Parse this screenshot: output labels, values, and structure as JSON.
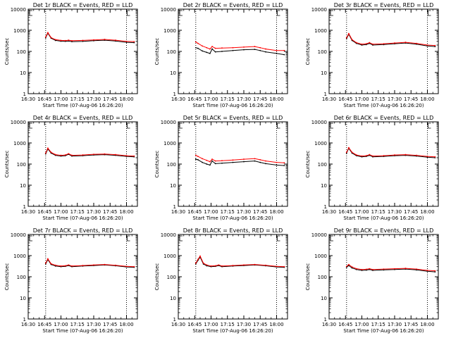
{
  "colors": {
    "events": "#000000",
    "lld": "#ff0000",
    "axis": "#000000",
    "background": "#ffffff"
  },
  "chart_data": [
    {
      "type": "line",
      "title": "Det 1r BLACK = Events, RED = LLD",
      "xlabel": "Start Time (07-Aug-06 16:26:20)",
      "ylabel": "Counts/sec",
      "xticks": [
        "16:30",
        "16:45",
        "17:00",
        "17:15",
        "17:30",
        "17:45",
        "18:00"
      ],
      "yticks": [
        "1",
        "10",
        "100",
        "1000",
        "10000"
      ],
      "ylog": true,
      "ylim": [
        1,
        10000
      ],
      "xlim_minutes": [
        990,
        1090
      ],
      "vlines_minutes": [
        1006,
        1080
      ],
      "series": [
        {
          "name": "Events",
          "color": "#000000",
          "x": [
            1006,
            1008,
            1011,
            1015,
            1020,
            1024,
            1027,
            1030,
            1040,
            1050,
            1060,
            1070,
            1080,
            1087
          ],
          "y": [
            440,
            730,
            420,
            330,
            305,
            300,
            310,
            290,
            300,
            320,
            340,
            310,
            270,
            260
          ]
        },
        {
          "name": "LLD",
          "color": "#ff0000",
          "x": [
            1006,
            1008,
            1011,
            1015,
            1020,
            1024,
            1027,
            1030,
            1040,
            1050,
            1060,
            1070,
            1080,
            1087
          ],
          "y": [
            480,
            780,
            450,
            360,
            330,
            325,
            340,
            320,
            330,
            350,
            370,
            340,
            300,
            290
          ]
        }
      ]
    },
    {
      "type": "line",
      "title": "Det 2r BLACK = Events, RED = LLD",
      "xlabel": "Start Time (07-Aug-06 16:26:20)",
      "ylabel": "Counts/sec",
      "xticks": [
        "16:30",
        "16:45",
        "17:00",
        "17:15",
        "17:30",
        "17:45",
        "18:00"
      ],
      "yticks": [
        "1",
        "10",
        "100",
        "1000",
        "10000"
      ],
      "ylog": true,
      "ylim": [
        1,
        10000
      ],
      "xlim_minutes": [
        990,
        1090
      ],
      "vlines_minutes": [
        1006,
        1080
      ],
      "series": [
        {
          "name": "Events",
          "color": "#000000",
          "x": [
            1006,
            1008,
            1012,
            1016,
            1019,
            1021,
            1024,
            1030,
            1040,
            1050,
            1060,
            1065,
            1070,
            1080,
            1087
          ],
          "y": [
            150,
            140,
            105,
            90,
            80,
            130,
            95,
            100,
            110,
            120,
            125,
            110,
            95,
            80,
            70
          ]
        },
        {
          "name": "LLD",
          "color": "#ff0000",
          "x": [
            1006,
            1008,
            1012,
            1016,
            1019,
            1021,
            1024,
            1030,
            1040,
            1050,
            1060,
            1065,
            1070,
            1080,
            1087
          ],
          "y": [
            280,
            240,
            180,
            150,
            130,
            170,
            140,
            145,
            150,
            160,
            170,
            150,
            130,
            110,
            110
          ]
        }
      ]
    },
    {
      "type": "line",
      "title": "Det 3r BLACK = Events, RED = LLD",
      "xlabel": "Start Time (07-Aug-06 16:26:20)",
      "ylabel": "Counts/sec",
      "xticks": [
        "16:30",
        "16:45",
        "17:00",
        "17:15",
        "17:30",
        "17:45",
        "18:00"
      ],
      "yticks": [
        "1",
        "10",
        "100",
        "1000",
        "10000"
      ],
      "ylog": true,
      "ylim": [
        1,
        10000
      ],
      "xlim_minutes": [
        990,
        1090
      ],
      "vlines_minutes": [
        1006,
        1080
      ],
      "series": [
        {
          "name": "Events",
          "color": "#000000",
          "x": [
            1006,
            1008,
            1011,
            1015,
            1020,
            1024,
            1027,
            1030,
            1040,
            1050,
            1060,
            1070,
            1080,
            1087
          ],
          "y": [
            400,
            650,
            330,
            240,
            200,
            210,
            240,
            200,
            210,
            230,
            250,
            220,
            180,
            170
          ]
        },
        {
          "name": "LLD",
          "color": "#ff0000",
          "x": [
            1006,
            1008,
            1011,
            1015,
            1020,
            1024,
            1027,
            1030,
            1040,
            1050,
            1060,
            1070,
            1080,
            1087
          ],
          "y": [
            440,
            700,
            360,
            260,
            220,
            230,
            260,
            220,
            230,
            250,
            270,
            240,
            200,
            190
          ]
        }
      ]
    },
    {
      "type": "line",
      "title": "Det 4r BLACK = Events, RED = LLD",
      "xlabel": "Start Time (07-Aug-06 16:26:20)",
      "ylabel": "Counts/sec",
      "xticks": [
        "16:30",
        "16:45",
        "17:00",
        "17:15",
        "17:30",
        "17:45",
        "18:00"
      ],
      "yticks": [
        "1",
        "10",
        "100",
        "1000",
        "10000"
      ],
      "ylog": true,
      "ylim": [
        1,
        10000
      ],
      "xlim_minutes": [
        990,
        1090
      ],
      "vlines_minutes": [
        1006,
        1080
      ],
      "series": [
        {
          "name": "Events",
          "color": "#000000",
          "x": [
            1006,
            1008,
            1011,
            1015,
            1020,
            1024,
            1027,
            1030,
            1040,
            1050,
            1060,
            1070,
            1080,
            1087
          ],
          "y": [
            300,
            520,
            330,
            260,
            240,
            250,
            290,
            240,
            250,
            270,
            280,
            260,
            230,
            220
          ]
        },
        {
          "name": "LLD",
          "color": "#ff0000",
          "x": [
            1006,
            1008,
            1011,
            1015,
            1020,
            1024,
            1027,
            1030,
            1040,
            1050,
            1060,
            1070,
            1080,
            1087
          ],
          "y": [
            330,
            570,
            360,
            280,
            260,
            270,
            310,
            260,
            270,
            290,
            300,
            280,
            250,
            240
          ]
        }
      ]
    },
    {
      "type": "line",
      "title": "Det 5r BLACK = Events, RED = LLD",
      "xlabel": "Start Time (07-Aug-06 16:26:20)",
      "ylabel": "Counts/sec",
      "xticks": [
        "16:30",
        "16:45",
        "17:00",
        "17:15",
        "17:30",
        "17:45",
        "18:00"
      ],
      "yticks": [
        "1",
        "10",
        "100",
        "1000",
        "10000"
      ],
      "ylog": true,
      "ylim": [
        1,
        10000
      ],
      "xlim_minutes": [
        990,
        1090
      ],
      "vlines_minutes": [
        1006,
        1080
      ],
      "series": [
        {
          "name": "Events",
          "color": "#000000",
          "x": [
            1006,
            1008,
            1012,
            1016,
            1019,
            1021,
            1024,
            1030,
            1040,
            1050,
            1060,
            1065,
            1070,
            1080,
            1087
          ],
          "y": [
            170,
            160,
            120,
            100,
            90,
            140,
            105,
            110,
            120,
            130,
            140,
            120,
            105,
            90,
            85
          ]
        },
        {
          "name": "LLD",
          "color": "#ff0000",
          "x": [
            1006,
            1008,
            1012,
            1016,
            1019,
            1021,
            1024,
            1030,
            1040,
            1050,
            1060,
            1065,
            1070,
            1080,
            1087
          ],
          "y": [
            260,
            230,
            180,
            150,
            130,
            170,
            140,
            145,
            155,
            170,
            180,
            160,
            140,
            120,
            115
          ]
        }
      ]
    },
    {
      "type": "line",
      "title": "Det 6r BLACK = Events, RED = LLD",
      "xlabel": "Start Time (07-Aug-06 16:26:20)",
      "ylabel": "Counts/sec",
      "xticks": [
        "16:30",
        "16:45",
        "17:00",
        "17:15",
        "17:30",
        "17:45",
        "18:00"
      ],
      "yticks": [
        "1",
        "10",
        "100",
        "1000",
        "10000"
      ],
      "ylog": true,
      "ylim": [
        1,
        10000
      ],
      "xlim_minutes": [
        990,
        1090
      ],
      "vlines_minutes": [
        1006,
        1080
      ],
      "series": [
        {
          "name": "Events",
          "color": "#000000",
          "x": [
            1006,
            1008,
            1011,
            1015,
            1020,
            1024,
            1027,
            1030,
            1040,
            1050,
            1060,
            1070,
            1080,
            1087
          ],
          "y": [
            330,
            560,
            330,
            250,
            220,
            230,
            260,
            220,
            230,
            250,
            260,
            240,
            210,
            200
          ]
        },
        {
          "name": "LLD",
          "color": "#ff0000",
          "x": [
            1006,
            1008,
            1011,
            1015,
            1020,
            1024,
            1027,
            1030,
            1040,
            1050,
            1060,
            1070,
            1080,
            1087
          ],
          "y": [
            360,
            600,
            360,
            270,
            240,
            250,
            280,
            240,
            250,
            270,
            280,
            260,
            230,
            220
          ]
        }
      ]
    },
    {
      "type": "line",
      "title": "Det 7r BLACK = Events, RED = LLD",
      "xlabel": "Start Time (07-Aug-06 16:26:20)",
      "ylabel": "Counts/sec",
      "xticks": [
        "16:30",
        "16:45",
        "17:00",
        "17:15",
        "17:30",
        "17:45",
        "18:00"
      ],
      "yticks": [
        "1",
        "10",
        "100",
        "1000",
        "10000"
      ],
      "ylog": true,
      "ylim": [
        1,
        10000
      ],
      "xlim_minutes": [
        990,
        1090
      ],
      "vlines_minutes": [
        1006,
        1080
      ],
      "series": [
        {
          "name": "Events",
          "color": "#000000",
          "x": [
            1006,
            1008,
            1011,
            1015,
            1020,
            1024,
            1027,
            1030,
            1040,
            1050,
            1060,
            1070,
            1080,
            1087
          ],
          "y": [
            400,
            650,
            380,
            320,
            300,
            310,
            340,
            300,
            320,
            340,
            360,
            330,
            290,
            280
          ]
        },
        {
          "name": "LLD",
          "color": "#ff0000",
          "x": [
            1006,
            1008,
            1011,
            1015,
            1020,
            1024,
            1027,
            1030,
            1040,
            1050,
            1060,
            1070,
            1080,
            1087
          ],
          "y": [
            440,
            710,
            410,
            350,
            320,
            330,
            360,
            320,
            340,
            360,
            380,
            350,
            310,
            300
          ]
        }
      ]
    },
    {
      "type": "line",
      "title": "Det 8r BLACK = Events, RED = LLD",
      "xlabel": "Start Time (07-Aug-06 16:26:20)",
      "ylabel": "Counts/sec",
      "xticks": [
        "16:30",
        "16:45",
        "17:00",
        "17:15",
        "17:30",
        "17:45",
        "18:00"
      ],
      "yticks": [
        "1",
        "10",
        "100",
        "1000",
        "10000"
      ],
      "ylog": true,
      "ylim": [
        1,
        10000
      ],
      "xlim_minutes": [
        990,
        1090
      ],
      "vlines_minutes": [
        1006,
        1080
      ],
      "series": [
        {
          "name": "Events",
          "color": "#000000",
          "x": [
            1006,
            1008,
            1010,
            1013,
            1016,
            1020,
            1024,
            1027,
            1030,
            1040,
            1050,
            1060,
            1070,
            1080,
            1087
          ],
          "y": [
            400,
            600,
            850,
            400,
            330,
            300,
            310,
            340,
            300,
            320,
            340,
            360,
            330,
            290,
            280
          ]
        },
        {
          "name": "LLD",
          "color": "#ff0000",
          "x": [
            1006,
            1008,
            1010,
            1013,
            1016,
            1020,
            1024,
            1027,
            1030,
            1040,
            1050,
            1060,
            1070,
            1080,
            1087
          ],
          "y": [
            440,
            660,
            950,
            440,
            360,
            320,
            330,
            360,
            320,
            340,
            360,
            380,
            350,
            310,
            300
          ]
        }
      ]
    },
    {
      "type": "line",
      "title": "Det 9r BLACK = Events, RED = LLD",
      "xlabel": "Start Time (07-Aug-06 16:26:20)",
      "ylabel": "Counts/sec",
      "xticks": [
        "16:30",
        "16:45",
        "17:00",
        "17:15",
        "17:30",
        "17:45",
        "18:00"
      ],
      "yticks": [
        "1",
        "10",
        "100",
        "1000",
        "10000"
      ],
      "ylog": true,
      "ylim": [
        1,
        10000
      ],
      "xlim_minutes": [
        990,
        1090
      ],
      "vlines_minutes": [
        1006,
        1080
      ],
      "series": [
        {
          "name": "Events",
          "color": "#000000",
          "x": [
            1006,
            1008,
            1011,
            1015,
            1020,
            1024,
            1027,
            1030,
            1040,
            1050,
            1060,
            1070,
            1080,
            1087
          ],
          "y": [
            280,
            340,
            260,
            220,
            200,
            205,
            220,
            200,
            210,
            220,
            230,
            210,
            180,
            170
          ]
        },
        {
          "name": "LLD",
          "color": "#ff0000",
          "x": [
            1006,
            1008,
            1011,
            1015,
            1020,
            1024,
            1027,
            1030,
            1040,
            1050,
            1060,
            1070,
            1080,
            1087
          ],
          "y": [
            310,
            380,
            290,
            240,
            220,
            225,
            240,
            220,
            230,
            240,
            250,
            230,
            200,
            190
          ]
        }
      ]
    }
  ]
}
